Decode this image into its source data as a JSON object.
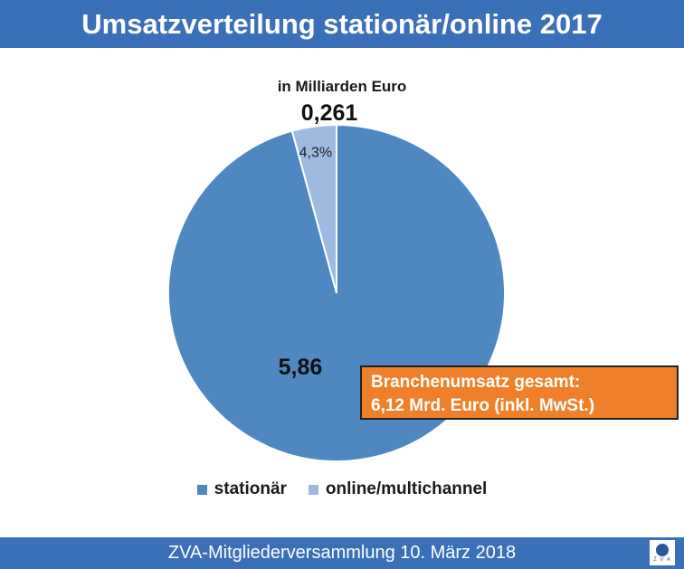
{
  "header": {
    "title": "Umsatzverteilung stationär/online 2017"
  },
  "footer": {
    "text": "ZVA-Mitgliederversammlung 10. März 2018",
    "logo_text": "Z V A"
  },
  "callout": {
    "line1": "Branchenumsatz gesamt:",
    "line2": "6,12 Mrd. Euro (inkl. MwSt.)"
  },
  "colors": {
    "header": "#3a70b8",
    "stationaer": "#4f87c0",
    "online": "#9dbae0",
    "callout": "#f07f2a"
  },
  "chart_data": {
    "type": "pie",
    "subtitle": "in Milliarden Euro",
    "slices": [
      {
        "name": "stationär",
        "value": 5.86,
        "label": "5,86",
        "color": "#4f87c0"
      },
      {
        "name": "online/multichannel",
        "value": 0.261,
        "label": "0,261",
        "percent_label": "4,3%",
        "color": "#9dbae0"
      }
    ],
    "legend_position": "bottom"
  }
}
